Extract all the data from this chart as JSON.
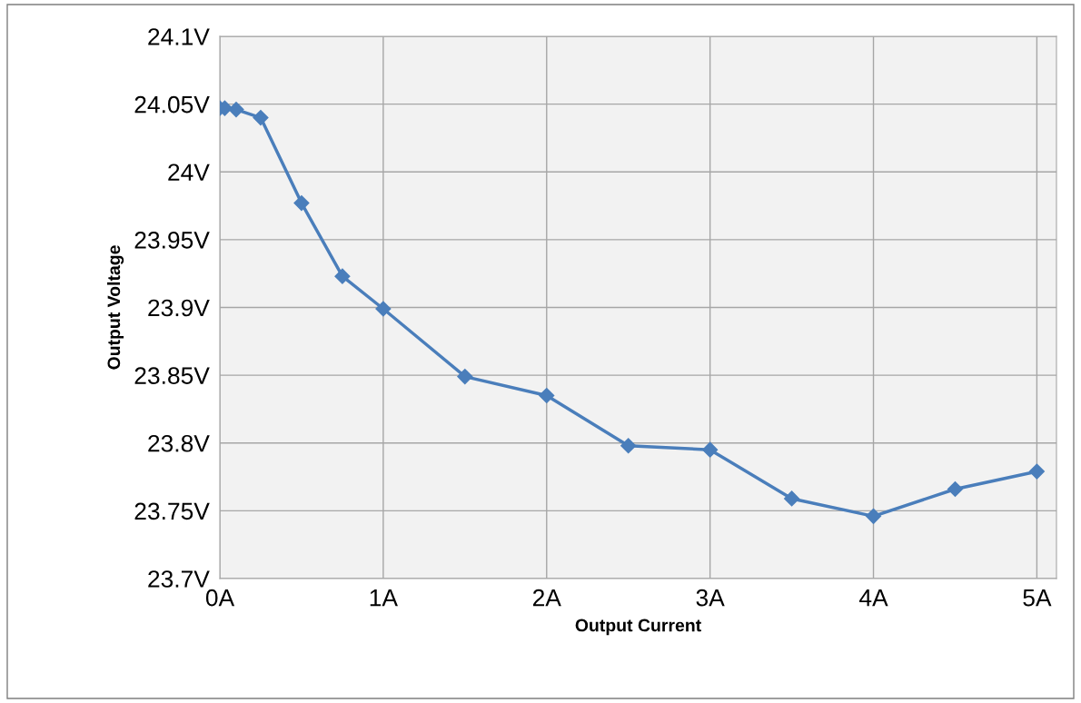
{
  "chart_data": {
    "type": "line",
    "xlabel": "Output Current",
    "ylabel": "Output Voltage",
    "x": [
      0,
      0.03,
      0.1,
      0.25,
      0.5,
      0.75,
      1,
      1.5,
      2,
      2.5,
      3,
      3.5,
      4,
      4.5,
      5
    ],
    "series": [
      {
        "color": "#4a7ebb",
        "values": [
          24.047,
          24.047,
          24.046,
          24.04,
          23.977,
          23.923,
          23.899,
          23.849,
          23.835,
          23.798,
          23.795,
          23.759,
          23.746,
          23.766,
          23.779
        ]
      }
    ],
    "xlim": [
      0,
      5.12
    ],
    "ylim": [
      23.7,
      24.1
    ],
    "xticks": [
      {
        "value": 0,
        "label": "0A"
      },
      {
        "value": 1,
        "label": "1A"
      },
      {
        "value": 2,
        "label": "2A"
      },
      {
        "value": 3,
        "label": "3A"
      },
      {
        "value": 4,
        "label": "4A"
      },
      {
        "value": 5,
        "label": "5A"
      }
    ],
    "yticks": [
      {
        "value": 23.7,
        "label": "23.7V"
      },
      {
        "value": 23.75,
        "label": "23.75V"
      },
      {
        "value": 23.8,
        "label": "23.8V"
      },
      {
        "value": 23.85,
        "label": "23.85V"
      },
      {
        "value": 23.9,
        "label": "23.9V"
      },
      {
        "value": 23.95,
        "label": "23.95V"
      },
      {
        "value": 24.0,
        "label": "24V"
      },
      {
        "value": 24.05,
        "label": "24.05V"
      },
      {
        "value": 24.1,
        "label": "24.1V"
      }
    ],
    "grid": true,
    "marker": "diamond",
    "line_style": "solid",
    "legend": false
  }
}
